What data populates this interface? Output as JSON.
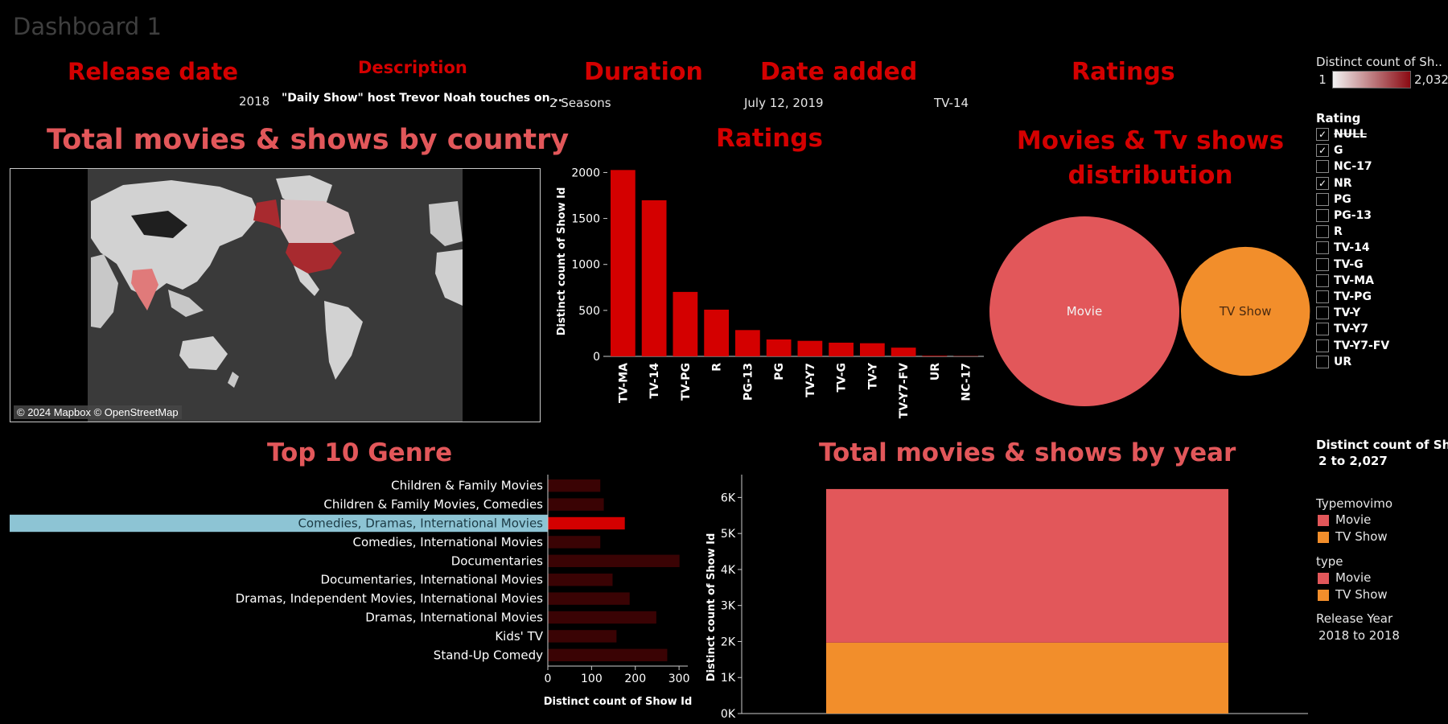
{
  "dashboard_title": "Dashboard 1",
  "detail": {
    "release_date": {
      "header": "Release date",
      "value": "2018"
    },
    "description": {
      "header": "Description",
      "value": "\"Daily Show\" host Trevor Noah touches on .."
    },
    "duration": {
      "header": "Duration",
      "value": "2 Seasons"
    },
    "date_added": {
      "header": "Date added",
      "value": "July 12, 2019"
    },
    "ratings": {
      "header": "Ratings",
      "value": "TV-14"
    }
  },
  "map": {
    "title": "Total movies & shows by country",
    "attribution": "© 2024 Mapbox © OpenStreetMap"
  },
  "legends": {
    "distinct_count": {
      "title": "Distinct count of Sh..",
      "min": "1",
      "max": "2,032",
      "color_low": "#f2f2f2",
      "color_high": "#8b0a12"
    },
    "rating_filter": {
      "title": "Rating",
      "items": [
        {
          "label": "NULL",
          "checked": true,
          "strike": true
        },
        {
          "label": "G",
          "checked": true,
          "strike": false
        },
        {
          "label": "NC-17",
          "checked": false,
          "strike": false
        },
        {
          "label": "NR",
          "checked": true,
          "strike": false
        },
        {
          "label": "PG",
          "checked": false,
          "strike": false
        },
        {
          "label": "PG-13",
          "checked": false,
          "strike": false
        },
        {
          "label": "R",
          "checked": false,
          "strike": false
        },
        {
          "label": "TV-14",
          "checked": false,
          "strike": false
        },
        {
          "label": "TV-G",
          "checked": false,
          "strike": false
        },
        {
          "label": "TV-MA",
          "checked": false,
          "strike": false
        },
        {
          "label": "TV-PG",
          "checked": false,
          "strike": false
        },
        {
          "label": "TV-Y",
          "checked": false,
          "strike": false
        },
        {
          "label": "TV-Y7",
          "checked": false,
          "strike": false
        },
        {
          "label": "TV-Y7-FV",
          "checked": false,
          "strike": false
        },
        {
          "label": "UR",
          "checked": false,
          "strike": false
        }
      ]
    },
    "size_legend": {
      "title": "Distinct count of Sh..",
      "range": "2 to 2,027"
    },
    "typemovimo": {
      "title": "Typemovimo",
      "items": [
        {
          "label": "Movie",
          "color": "#e2575a"
        },
        {
          "label": "TV Show",
          "color": "#f28e2b"
        }
      ]
    },
    "type": {
      "title": "type",
      "items": [
        {
          "label": "Movie",
          "color": "#e2575a"
        },
        {
          "label": "TV Show",
          "color": "#f28e2b"
        }
      ]
    },
    "release_year": {
      "title": "Release Year",
      "range": "2018 to 2018"
    }
  },
  "chart_data": [
    {
      "type": "bar",
      "id": "ratings",
      "title": "Ratings",
      "categories": [
        "TV-MA",
        "TV-14",
        "TV-PG",
        "R",
        "PG-13",
        "PG",
        "TV-Y7",
        "TV-G",
        "TV-Y",
        "TV-Y7-FV",
        "UR",
        "NC-17"
      ],
      "values": [
        2027,
        1698,
        701,
        508,
        286,
        184,
        169,
        149,
        143,
        95,
        7,
        3
      ],
      "ylabel": "Distinct count of Show Id",
      "ylim": [
        0,
        2100
      ],
      "yticks": [
        0,
        500,
        1000,
        1500,
        2000
      ],
      "color": "#d40000"
    },
    {
      "type": "bubble",
      "id": "distribution",
      "title": "Movies & Tv shows distribution",
      "categories": [
        "Movie",
        "TV Show"
      ],
      "values": [
        4265,
        1969
      ],
      "colors": [
        "#e2575a",
        "#f28e2b"
      ]
    },
    {
      "type": "bar",
      "id": "top_genre",
      "orientation": "horizontal",
      "title": "Top 10 Genre",
      "categories": [
        "Children & Family Movies",
        "Children & Family Movies, Comedies",
        "Comedies, Dramas, International Movies",
        "Comedies, International Movies",
        "Documentaries",
        "Documentaries, International Movies",
        "Dramas, Independent Movies, International Movies",
        "Dramas, International Movies",
        "Kids' TV",
        "Stand-Up Comedy"
      ],
      "values": [
        120,
        128,
        176,
        120,
        301,
        148,
        187,
        248,
        157,
        273
      ],
      "highlighted": "Comedies, Dramas, International Movies",
      "xlabel": "Distinct count of Show Id",
      "xlim": [
        0,
        320
      ],
      "xticks": [
        0,
        100,
        200,
        300
      ],
      "color": "#d40000",
      "dim_color": "#3a0304",
      "highlight_row_color": "#8dc4d4"
    },
    {
      "type": "bar",
      "id": "by_year",
      "stacked": true,
      "title": "Total movies & shows by year",
      "categories": [
        ""
      ],
      "series": [
        {
          "name": "TV Show",
          "values": [
            1969
          ]
        },
        {
          "name": "Movie",
          "values": [
            4265
          ]
        }
      ],
      "ylabel": "Distinct count of Show Id",
      "ylim": [
        0,
        6500
      ],
      "ytick_labels": [
        "0K",
        "1K",
        "2K",
        "3K",
        "4K",
        "5K",
        "6K"
      ],
      "colors": [
        "#f28e2b",
        "#e2575a"
      ]
    }
  ]
}
